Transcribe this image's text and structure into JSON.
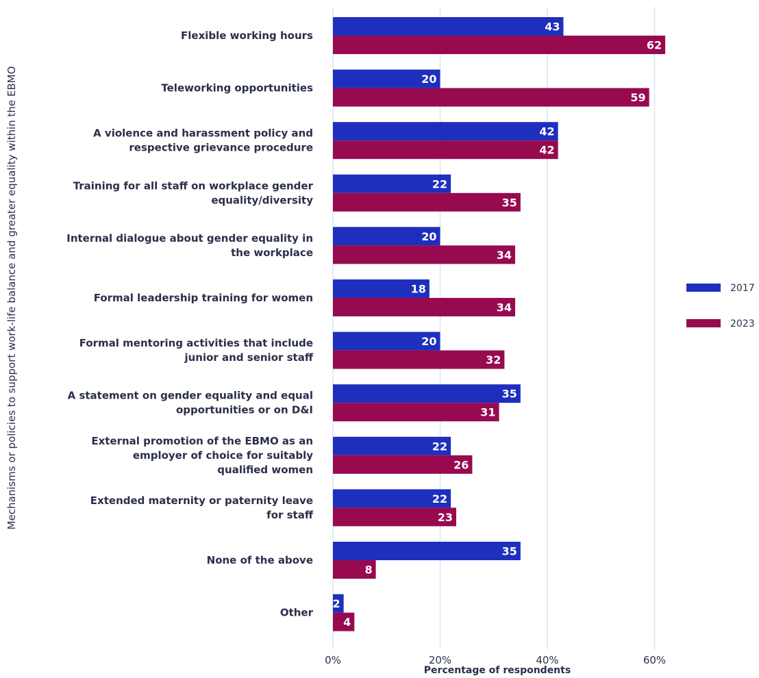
{
  "chart_data": {
    "type": "bar",
    "orientation": "horizontal",
    "xlabel": "Percentage of respondents",
    "ylabel": "Mechanisms or policies to support work-life balance and greater equality within the EBMO",
    "xlim": [
      0,
      70
    ],
    "xticks": [
      0,
      20,
      40,
      60
    ],
    "xtick_labels": [
      "0%",
      "20%",
      "40%",
      "60%"
    ],
    "grid": "vertical",
    "legend_position": "right",
    "categories": [
      [
        "Flexible working hours"
      ],
      [
        "Teleworking opportunities"
      ],
      [
        "A violence and harassment policy and",
        "respective grievance procedure"
      ],
      [
        "Training for all staff on workplace gender",
        "equality/diversity"
      ],
      [
        "Internal dialogue about gender equality in",
        "the workplace"
      ],
      [
        "Formal leadership training for women"
      ],
      [
        "Formal mentoring activities that include",
        "junior and senior staff"
      ],
      [
        "A statement on gender equality and equal",
        "opportunities or on D&I"
      ],
      [
        "External promotion of the EBMO as an",
        "employer of choice for suitably",
        "qualified women"
      ],
      [
        "Extended maternity or paternity leave",
        "for staff"
      ],
      [
        "None of the above"
      ],
      [
        "Other"
      ]
    ],
    "series": [
      {
        "name": "2017",
        "color": "#1f2fbd",
        "values": [
          43,
          20,
          42,
          22,
          20,
          18,
          20,
          35,
          22,
          22,
          35,
          2
        ]
      },
      {
        "name": "2023",
        "color": "#970a50",
        "values": [
          62,
          59,
          42,
          35,
          34,
          34,
          32,
          31,
          26,
          23,
          8,
          4
        ]
      }
    ]
  }
}
